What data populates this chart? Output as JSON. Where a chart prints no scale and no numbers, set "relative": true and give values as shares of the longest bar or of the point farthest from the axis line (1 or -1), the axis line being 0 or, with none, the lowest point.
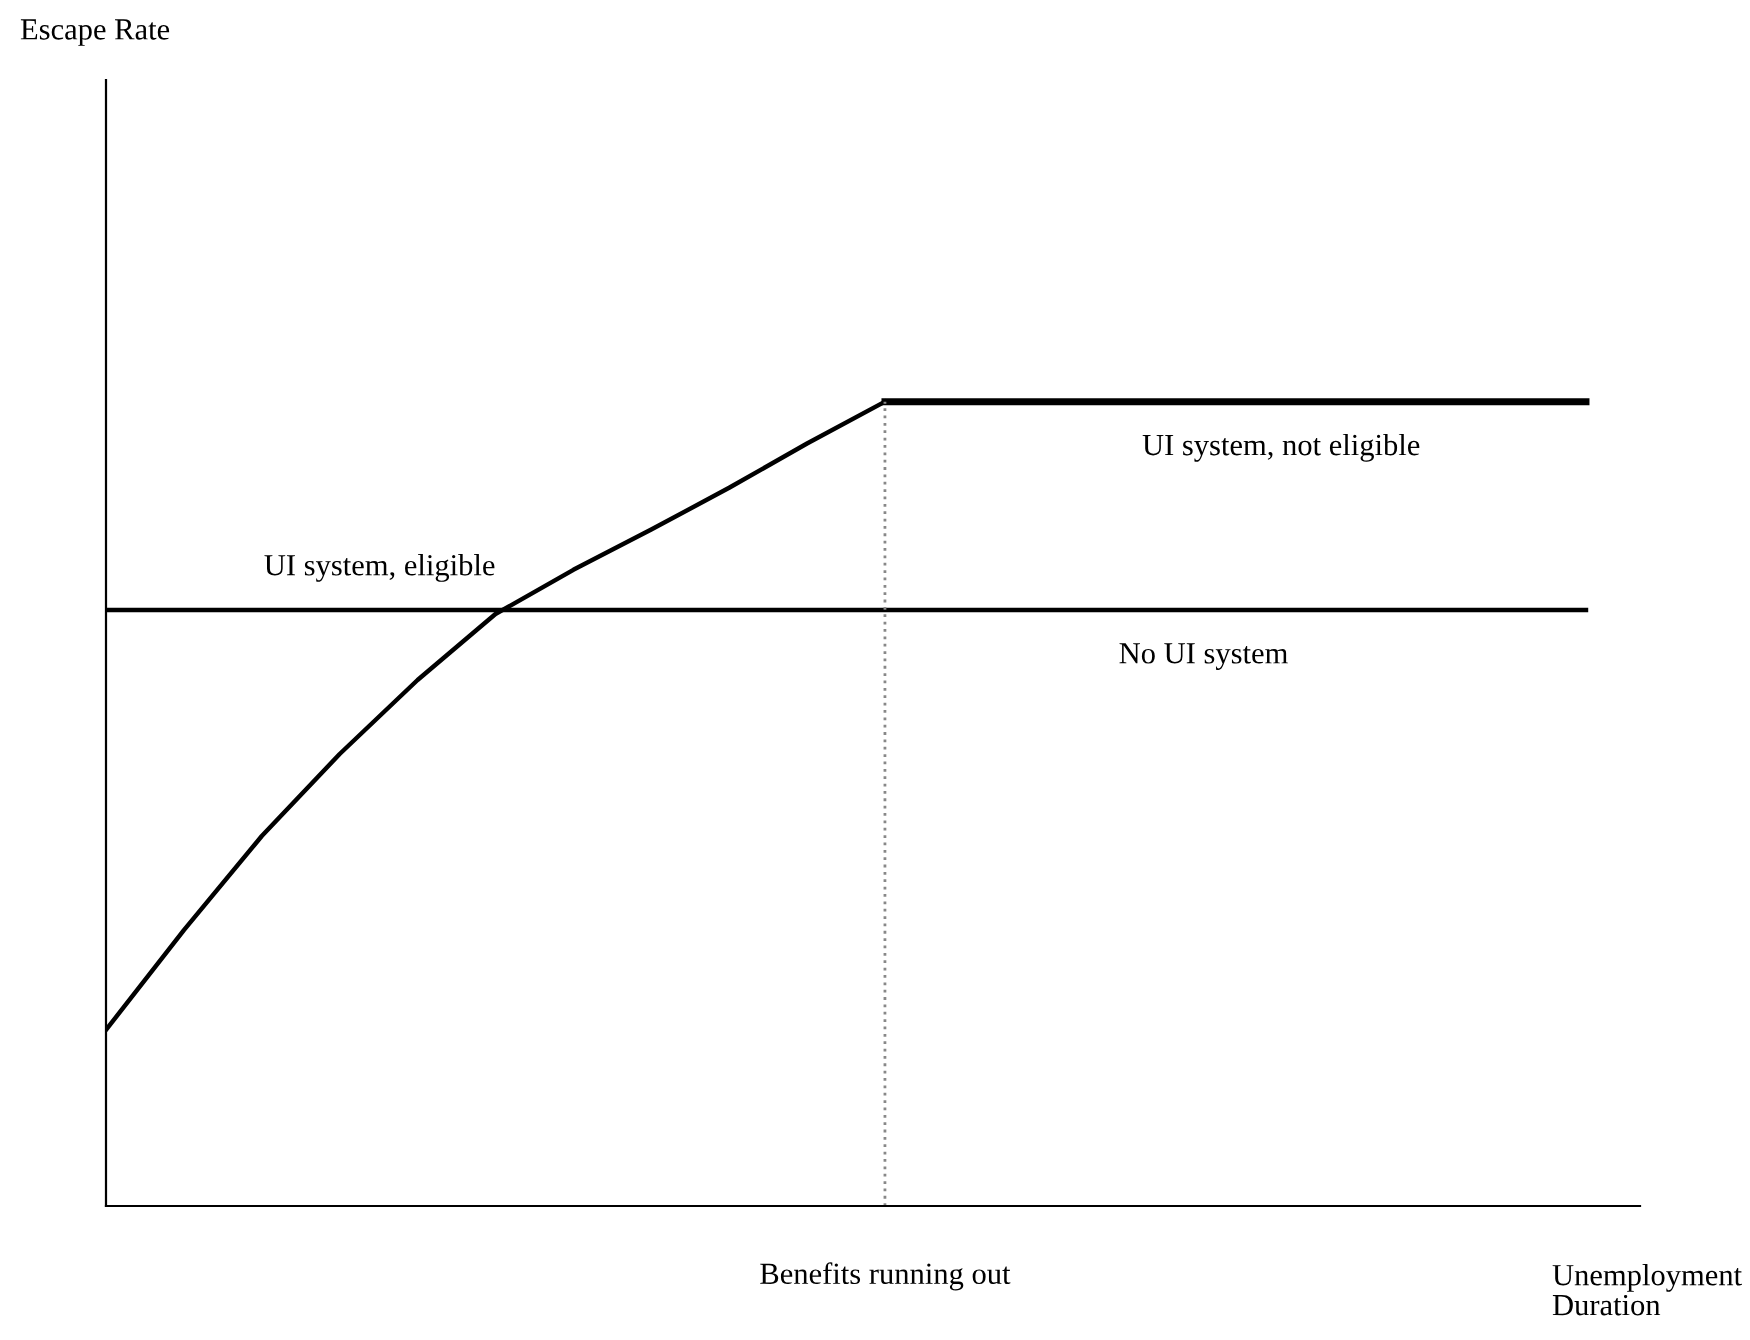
{
  "chart_data": {
    "type": "line",
    "relative": true,
    "annotations": [
      "Escape Rate",
      "Benefits running out"
    ],
    "xlabel": "Unemployment\nDuration",
    "marker": "none",
    "line_style": "solid",
    "categories": [
      null,
      null,
      null,
      null,
      null,
      null,
      null,
      null,
      null,
      null,
      null,
      null,
      null,
      null,
      null,
      null,
      null,
      null,
      null,
      null
    ],
    "series": [
      {
        "name": "UI system, eligible",
        "color": "#000000",
        "values": [
          0.219,
          0.343,
          0.46,
          0.562,
          0.654,
          0.736,
          0.791,
          0.841,
          0.893,
          0.948,
          1.0,
          null,
          null,
          null,
          null,
          null,
          null,
          null,
          null,
          null
        ]
      },
      {
        "name": "UI system, not eligible",
        "color": "#000000",
        "values": [
          null,
          null,
          null,
          null,
          null,
          null,
          null,
          null,
          null,
          null,
          1.0,
          1.0,
          1.0,
          1.0,
          1.0,
          1.0,
          1.0,
          1.0,
          1.0,
          1.0
        ]
      },
      {
        "name": "No UI system",
        "color": "#000000",
        "values": [
          0.741,
          0.741,
          0.741,
          0.741,
          0.741,
          0.741,
          0.741,
          0.741,
          0.741,
          0.741,
          0.741,
          0.741,
          0.741,
          0.741,
          0.741,
          0.741,
          0.741,
          0.741,
          0.741,
          0.741
        ]
      }
    ]
  }
}
